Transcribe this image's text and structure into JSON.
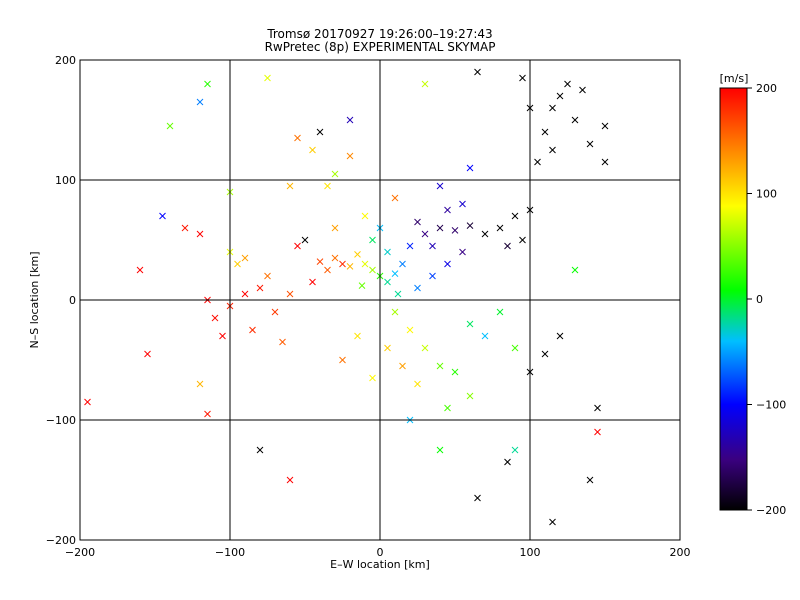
{
  "chart_data": {
    "type": "scatter",
    "title": "Tromsø 20170927 19:26:00–19:27:43",
    "subtitle": "RwPretec (8p) EXPERIMENTAL SKYMAP",
    "xlabel": "E–W location [km]",
    "ylabel": "N–S location [km]",
    "xlim": [
      -200,
      200
    ],
    "ylim": [
      -200,
      200
    ],
    "x_ticks": [
      -200,
      -100,
      0,
      100,
      200
    ],
    "y_ticks": [
      -200,
      -100,
      0,
      100,
      200
    ],
    "x_tick_labels": [
      "−200",
      "−100",
      "0",
      "100",
      "200"
    ],
    "y_tick_labels": [
      "−200",
      "−100",
      "0",
      "100",
      "200"
    ],
    "grid": true,
    "colorbar": {
      "label": "[m/s]",
      "range": [
        -200,
        200
      ],
      "ticks": [
        200,
        100,
        0,
        -100,
        -200
      ],
      "tick_labels": [
        "200",
        "100",
        "0",
        "−100",
        "−200"
      ],
      "stops": [
        "#000000",
        "#3a0080",
        "#0000ff",
        "#00bfff",
        "#00ff00",
        "#ffff00",
        "#ff8000",
        "#ff0000"
      ]
    },
    "marker_types": [
      "x",
      "dot"
    ],
    "points": [
      {
        "x": -30,
        "y": 35,
        "v": 150,
        "m": "x"
      },
      {
        "x": -25,
        "y": 30,
        "v": 180,
        "m": "x"
      },
      {
        "x": -20,
        "y": 28,
        "v": 120,
        "m": "x"
      },
      {
        "x": -35,
        "y": 25,
        "v": 160,
        "m": "x"
      },
      {
        "x": -40,
        "y": 32,
        "v": 170,
        "m": "x"
      },
      {
        "x": -15,
        "y": 38,
        "v": 110,
        "m": "x"
      },
      {
        "x": -10,
        "y": 30,
        "v": 80,
        "m": "x"
      },
      {
        "x": -5,
        "y": 25,
        "v": 60,
        "m": "x"
      },
      {
        "x": 0,
        "y": 20,
        "v": 20,
        "m": "x"
      },
      {
        "x": 5,
        "y": 15,
        "v": -20,
        "m": "x"
      },
      {
        "x": 10,
        "y": 22,
        "v": -40,
        "m": "x"
      },
      {
        "x": 15,
        "y": 30,
        "v": -60,
        "m": "x"
      },
      {
        "x": 20,
        "y": 45,
        "v": -90,
        "m": "x"
      },
      {
        "x": 30,
        "y": 55,
        "v": -150,
        "m": "x"
      },
      {
        "x": 40,
        "y": 60,
        "v": -170,
        "m": "x"
      },
      {
        "x": 50,
        "y": 58,
        "v": -160,
        "m": "x"
      },
      {
        "x": 60,
        "y": 62,
        "v": -180,
        "m": "x"
      },
      {
        "x": 70,
        "y": 55,
        "v": -200,
        "m": "x"
      },
      {
        "x": 80,
        "y": 60,
        "v": -200,
        "m": "x"
      },
      {
        "x": 90,
        "y": 70,
        "v": -200,
        "m": "x"
      },
      {
        "x": 45,
        "y": 75,
        "v": -140,
        "m": "x"
      },
      {
        "x": 55,
        "y": 80,
        "v": -120,
        "m": "x"
      },
      {
        "x": 35,
        "y": 45,
        "v": -130,
        "m": "x"
      },
      {
        "x": 25,
        "y": 65,
        "v": -160,
        "m": "x"
      },
      {
        "x": -80,
        "y": 10,
        "v": 190,
        "m": "x"
      },
      {
        "x": -90,
        "y": 5,
        "v": 200,
        "m": "x"
      },
      {
        "x": -100,
        "y": -5,
        "v": 185,
        "m": "x"
      },
      {
        "x": -110,
        "y": -15,
        "v": 195,
        "m": "x"
      },
      {
        "x": -115,
        "y": 0,
        "v": 200,
        "m": "x"
      },
      {
        "x": -70,
        "y": -10,
        "v": 175,
        "m": "x"
      },
      {
        "x": -60,
        "y": 5,
        "v": 165,
        "m": "x"
      },
      {
        "x": -75,
        "y": 20,
        "v": 150,
        "m": "x"
      },
      {
        "x": -90,
        "y": 35,
        "v": 130,
        "m": "x"
      },
      {
        "x": -95,
        "y": 30,
        "v": 110,
        "m": "x"
      },
      {
        "x": -120,
        "y": 55,
        "v": 200,
        "m": "x"
      },
      {
        "x": -130,
        "y": 60,
        "v": 190,
        "m": "x"
      },
      {
        "x": -105,
        "y": -30,
        "v": 200,
        "m": "x"
      },
      {
        "x": -85,
        "y": -25,
        "v": 180,
        "m": "x"
      },
      {
        "x": -65,
        "y": -35,
        "v": 160,
        "m": "x"
      },
      {
        "x": -160,
        "y": 25,
        "v": 200,
        "m": "x"
      },
      {
        "x": -155,
        "y": -45,
        "v": 200,
        "m": "x"
      },
      {
        "x": -195,
        "y": -85,
        "v": 200,
        "m": "x"
      },
      {
        "x": -115,
        "y": -95,
        "v": 190,
        "m": "x"
      },
      {
        "x": -120,
        "y": -70,
        "v": 120,
        "m": "x"
      },
      {
        "x": 110,
        "y": 140,
        "v": -200,
        "m": "x"
      },
      {
        "x": 120,
        "y": 170,
        "v": -200,
        "m": "x"
      },
      {
        "x": 130,
        "y": 150,
        "v": -200,
        "m": "x"
      },
      {
        "x": 115,
        "y": 125,
        "v": -200,
        "m": "x"
      },
      {
        "x": 100,
        "y": 160,
        "v": -200,
        "m": "x"
      },
      {
        "x": 140,
        "y": 130,
        "v": -200,
        "m": "x"
      },
      {
        "x": 150,
        "y": 145,
        "v": -200,
        "m": "x"
      },
      {
        "x": 125,
        "y": 180,
        "v": -200,
        "m": "x"
      },
      {
        "x": 135,
        "y": 175,
        "v": -200,
        "m": "x"
      },
      {
        "x": 115,
        "y": 160,
        "v": -200,
        "m": "x"
      },
      {
        "x": 105,
        "y": 115,
        "v": -200,
        "m": "x"
      },
      {
        "x": 95,
        "y": 185,
        "v": -200,
        "m": "x"
      },
      {
        "x": 65,
        "y": 190,
        "v": -200,
        "m": "x"
      },
      {
        "x": 150,
        "y": 115,
        "v": -200,
        "m": "x"
      },
      {
        "x": 10,
        "y": -10,
        "v": 60,
        "m": "x"
      },
      {
        "x": 20,
        "y": -25,
        "v": 90,
        "m": "x"
      },
      {
        "x": 30,
        "y": -40,
        "v": 70,
        "m": "x"
      },
      {
        "x": 40,
        "y": -55,
        "v": 40,
        "m": "x"
      },
      {
        "x": 50,
        "y": -60,
        "v": 20,
        "m": "x"
      },
      {
        "x": 25,
        "y": -70,
        "v": 100,
        "m": "x"
      },
      {
        "x": 15,
        "y": -55,
        "v": 130,
        "m": "x"
      },
      {
        "x": 5,
        "y": -40,
        "v": 110,
        "m": "x"
      },
      {
        "x": 60,
        "y": -20,
        "v": -10,
        "m": "x"
      },
      {
        "x": 70,
        "y": -30,
        "v": -40,
        "m": "x"
      },
      {
        "x": 80,
        "y": -10,
        "v": 0,
        "m": "x"
      },
      {
        "x": 90,
        "y": -40,
        "v": 30,
        "m": "x"
      },
      {
        "x": 100,
        "y": -60,
        "v": -200,
        "m": "x"
      },
      {
        "x": 110,
        "y": -45,
        "v": -200,
        "m": "x"
      },
      {
        "x": 120,
        "y": -30,
        "v": -200,
        "m": "x"
      },
      {
        "x": 145,
        "y": -90,
        "v": -200,
        "m": "x"
      },
      {
        "x": 140,
        "y": -150,
        "v": -200,
        "m": "x"
      },
      {
        "x": 115,
        "y": -185,
        "v": -200,
        "m": "x"
      },
      {
        "x": 85,
        "y": -135,
        "v": -200,
        "m": "x"
      },
      {
        "x": 65,
        "y": -165,
        "v": -200,
        "m": "x"
      },
      {
        "x": 145,
        "y": -110,
        "v": 200,
        "m": "x"
      },
      {
        "x": 20,
        "y": -100,
        "v": -40,
        "m": "x"
      },
      {
        "x": 40,
        "y": -125,
        "v": 10,
        "m": "x"
      },
      {
        "x": 90,
        "y": -125,
        "v": -20,
        "m": "x"
      },
      {
        "x": -60,
        "y": -150,
        "v": 200,
        "m": "x"
      },
      {
        "x": -80,
        "y": -125,
        "v": -200,
        "m": "x"
      },
      {
        "x": -115,
        "y": 180,
        "v": 20,
        "m": "x"
      },
      {
        "x": -120,
        "y": 165,
        "v": -60,
        "m": "x"
      },
      {
        "x": -140,
        "y": 145,
        "v": 40,
        "m": "x"
      },
      {
        "x": -145,
        "y": 70,
        "v": -100,
        "m": "x"
      },
      {
        "x": -75,
        "y": 185,
        "v": 80,
        "m": "x"
      },
      {
        "x": -55,
        "y": 135,
        "v": 150,
        "m": "x"
      },
      {
        "x": -45,
        "y": 125,
        "v": 110,
        "m": "x"
      },
      {
        "x": -30,
        "y": 105,
        "v": 60,
        "m": "x"
      },
      {
        "x": -40,
        "y": 140,
        "v": -200,
        "m": "x"
      },
      {
        "x": -20,
        "y": 150,
        "v": -130,
        "m": "x"
      },
      {
        "x": 60,
        "y": 110,
        "v": -100,
        "m": "x"
      },
      {
        "x": 40,
        "y": 95,
        "v": -120,
        "m": "x"
      },
      {
        "x": 0,
        "y": 60,
        "v": -40,
        "m": "x"
      },
      {
        "x": -5,
        "y": 50,
        "v": -10,
        "m": "x"
      },
      {
        "x": 5,
        "y": 40,
        "v": -30,
        "m": "x"
      },
      {
        "x": 12,
        "y": 5,
        "v": -20,
        "m": "x"
      },
      {
        "x": -12,
        "y": 12,
        "v": 40,
        "m": "x"
      },
      {
        "x": 25,
        "y": 10,
        "v": -60,
        "m": "x"
      },
      {
        "x": 35,
        "y": 20,
        "v": -80,
        "m": "x"
      },
      {
        "x": 45,
        "y": 30,
        "v": -110,
        "m": "x"
      },
      {
        "x": 55,
        "y": 40,
        "v": -150,
        "m": "x"
      },
      {
        "x": 100,
        "y": 75,
        "v": -200,
        "m": "x"
      },
      {
        "x": 95,
        "y": 50,
        "v": -200,
        "m": "x"
      },
      {
        "x": 85,
        "y": 45,
        "v": -180,
        "m": "x"
      },
      {
        "x": 130,
        "y": 25,
        "v": 10,
        "m": "x"
      },
      {
        "x": -50,
        "y": 50,
        "v": -200,
        "m": "x"
      },
      {
        "x": -55,
        "y": 45,
        "v": 200,
        "m": "x"
      },
      {
        "x": -100,
        "y": 40,
        "v": 80,
        "m": "x"
      },
      {
        "x": -35,
        "y": 95,
        "v": 100,
        "m": "x"
      },
      {
        "x": -60,
        "y": 95,
        "v": 120,
        "m": "x"
      },
      {
        "x": -20,
        "y": 120,
        "v": 140,
        "m": "x"
      },
      {
        "x": 30,
        "y": 180,
        "v": 70,
        "m": "x"
      },
      {
        "x": -100,
        "y": 90,
        "v": 60,
        "m": "x"
      },
      {
        "x": -15,
        "y": -30,
        "v": 100,
        "m": "x"
      },
      {
        "x": -25,
        "y": -50,
        "v": 150,
        "m": "x"
      },
      {
        "x": -5,
        "y": -65,
        "v": 90,
        "m": "x"
      },
      {
        "x": 45,
        "y": -90,
        "v": 30,
        "m": "x"
      },
      {
        "x": 60,
        "y": -80,
        "v": 50,
        "m": "x"
      },
      {
        "x": 10,
        "y": 85,
        "v": 150,
        "m": "x"
      },
      {
        "x": -10,
        "y": 70,
        "v": 90,
        "m": "x"
      },
      {
        "x": -30,
        "y": 60,
        "v": 130,
        "m": "x"
      },
      {
        "x": -45,
        "y": 15,
        "v": 200,
        "m": "x"
      }
    ]
  }
}
